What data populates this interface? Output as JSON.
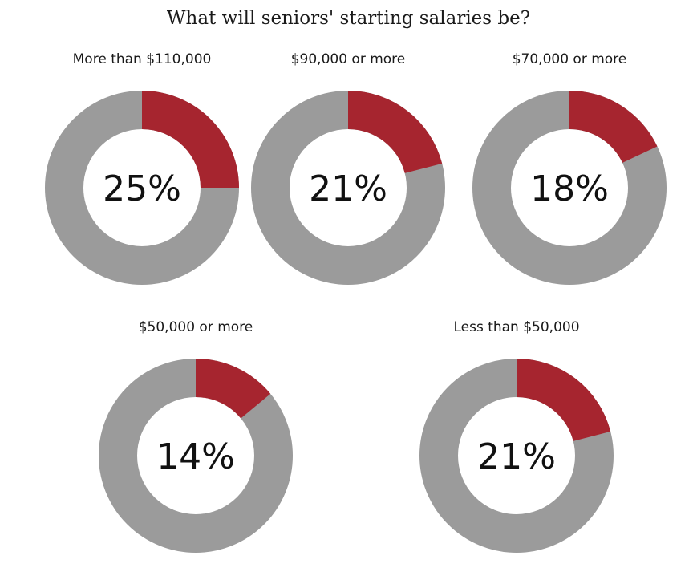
{
  "chart_data": {
    "type": "pie",
    "subtype": "donut",
    "title": "What will seniors' starting salaries be?",
    "series": [
      {
        "name": "More than $110,000",
        "value": 25,
        "label": "25%"
      },
      {
        "name": "$90,000 or more",
        "value": 21,
        "label": "21%"
      },
      {
        "name": "$70,000 or more",
        "value": 18,
        "label": "18%"
      },
      {
        "name": "$50,000 or more",
        "value": 14,
        "label": "14%"
      },
      {
        "name": "Less than $50,000",
        "value": 21,
        "label": "21%"
      }
    ],
    "colors": {
      "highlight": "#a6252f",
      "remainder": "#9b9b9b"
    }
  }
}
